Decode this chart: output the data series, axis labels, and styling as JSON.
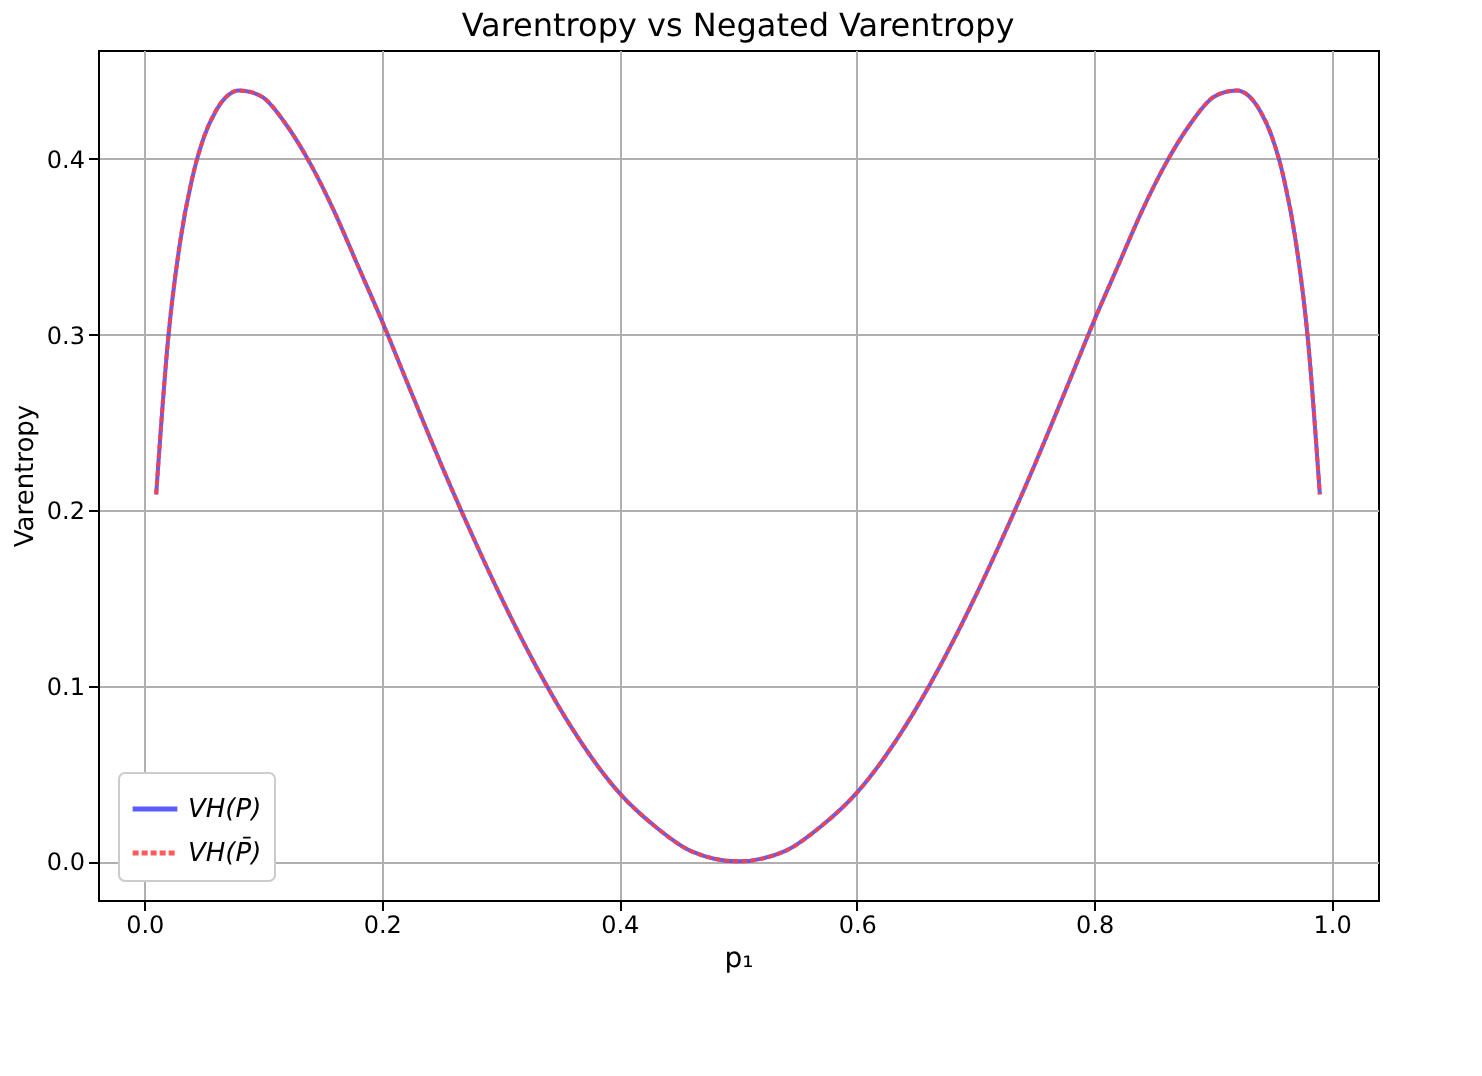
{
  "chart_data": {
    "type": "line",
    "title": "Varentropy vs Negated Varentropy",
    "xlabel": "p₁",
    "ylabel": "Varentropy",
    "x": [
      0.01,
      0.02,
      0.03,
      0.04,
      0.05,
      0.06,
      0.07,
      0.08,
      0.09,
      0.1,
      0.12,
      0.14,
      0.16,
      0.18,
      0.2,
      0.22,
      0.25,
      0.28,
      0.3,
      0.33,
      0.36,
      0.4,
      0.43,
      0.46,
      0.5,
      0.54,
      0.57,
      0.6,
      0.64,
      0.67,
      0.7,
      0.72,
      0.75,
      0.78,
      0.8,
      0.82,
      0.84,
      0.86,
      0.88,
      0.9,
      0.91,
      0.92,
      0.93,
      0.94,
      0.95,
      0.96,
      0.97,
      0.98,
      0.99
    ],
    "series": [
      {
        "name": "VH(P)",
        "color": "#3f3fff",
        "line_style": "solid",
        "values": [
          0.209,
          0.297,
          0.352,
          0.388,
          0.412,
          0.427,
          0.436,
          0.439,
          0.438,
          0.435,
          0.419,
          0.397,
          0.37,
          0.339,
          0.308,
          0.275,
          0.226,
          0.18,
          0.151,
          0.111,
          0.076,
          0.039,
          0.02,
          0.006,
          0,
          0.006,
          0.02,
          0.039,
          0.076,
          0.111,
          0.151,
          0.18,
          0.226,
          0.275,
          0.308,
          0.339,
          0.37,
          0.397,
          0.419,
          0.435,
          0.438,
          0.439,
          0.436,
          0.427,
          0.412,
          0.388,
          0.352,
          0.297,
          0.209
        ]
      },
      {
        "name": "VH(P̄)",
        "color": "#ff3f3f",
        "line_style": "dashed",
        "values": [
          0.209,
          0.297,
          0.352,
          0.388,
          0.412,
          0.427,
          0.436,
          0.439,
          0.438,
          0.435,
          0.419,
          0.397,
          0.37,
          0.339,
          0.308,
          0.275,
          0.226,
          0.18,
          0.151,
          0.111,
          0.076,
          0.039,
          0.02,
          0.006,
          0,
          0.006,
          0.02,
          0.039,
          0.076,
          0.111,
          0.151,
          0.18,
          0.226,
          0.275,
          0.308,
          0.339,
          0.37,
          0.397,
          0.419,
          0.435,
          0.438,
          0.439,
          0.436,
          0.427,
          0.412,
          0.388,
          0.352,
          0.297,
          0.209
        ]
      }
    ],
    "xlim": [
      -0.039,
      1.039
    ],
    "xticks": [
      {
        "value": 0,
        "label": "0.0"
      },
      0.2,
      0.4,
      0.6,
      0.8,
      {
        "value": 1,
        "label": "1.0"
      }
    ],
    "ylim": [
      -0.022,
      0.462
    ],
    "yticks": [
      {
        "value": 0,
        "label": "0.0"
      },
      0.1,
      0.2,
      0.3,
      0.4
    ],
    "grid": true,
    "legend": "bottom left"
  }
}
